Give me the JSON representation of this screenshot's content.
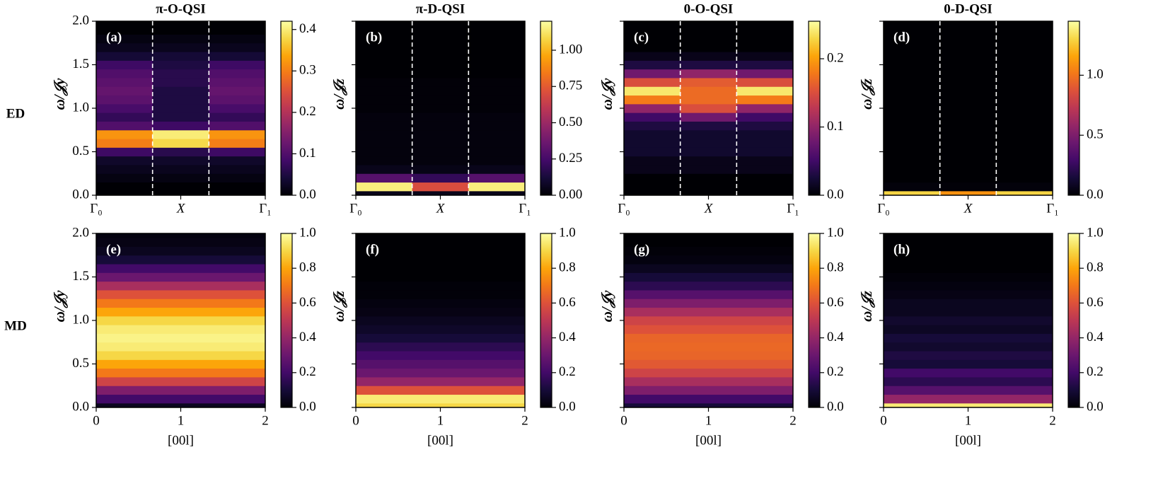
{
  "chart_data": [
    {
      "type": "heatmap",
      "title": "π-O-QSI",
      "row_label": "ED",
      "panel_label": "(a)",
      "ylabel": "ω/𝒥y",
      "colormap": "inferno",
      "categories": [
        "Γ₀",
        "X",
        "Γ₁"
      ],
      "dividers": true,
      "y": [
        0,
        0.1,
        0.2,
        0.3,
        0.4,
        0.5,
        0.6,
        0.7,
        0.8,
        0.9,
        1.0,
        1.1,
        1.2,
        1.3,
        1.4,
        1.5,
        1.6,
        1.7,
        1.8,
        1.9,
        2.0
      ],
      "columns": [
        [
          0,
          0,
          0.01,
          0.02,
          0.03,
          0.08,
          0.3,
          0.32,
          0.1,
          0.07,
          0.09,
          0.11,
          0.12,
          0.11,
          0.1,
          0.08,
          0.04,
          0.02,
          0.01,
          0,
          0
        ],
        [
          0,
          0,
          0.01,
          0.02,
          0.03,
          0.06,
          0.38,
          0.4,
          0.08,
          0.05,
          0.05,
          0.05,
          0.05,
          0.06,
          0.06,
          0.05,
          0.04,
          0.02,
          0.01,
          0,
          0
        ],
        [
          0,
          0,
          0.01,
          0.02,
          0.03,
          0.08,
          0.3,
          0.32,
          0.1,
          0.07,
          0.09,
          0.11,
          0.12,
          0.11,
          0.1,
          0.08,
          0.04,
          0.02,
          0.01,
          0,
          0
        ]
      ],
      "ylim": [
        0,
        2
      ],
      "yticks": [
        {
          "value": 0,
          "label": "0.0"
        },
        {
          "value": 0.5,
          "label": "0.5"
        },
        {
          "value": 1,
          "label": "1.0"
        },
        {
          "value": 1.5,
          "label": "1.5"
        },
        {
          "value": 2,
          "label": "2.0"
        }
      ],
      "ytick_labels": true,
      "clim": [
        0,
        0.42
      ],
      "cticks": [
        {
          "value": 0,
          "label": "0.0"
        },
        {
          "value": 0.1,
          "label": "0.1"
        },
        {
          "value": 0.2,
          "label": "0.2"
        },
        {
          "value": 0.3,
          "label": "0.3"
        },
        {
          "value": 0.4,
          "label": "0.4"
        }
      ]
    },
    {
      "type": "heatmap",
      "title": "π-D-QSI",
      "panel_label": "(b)",
      "ylabel": "ω/𝒥z",
      "colormap": "inferno",
      "categories": [
        "Γ₀",
        "X",
        "Γ₁"
      ],
      "dividers": true,
      "y": [
        0,
        0.1,
        0.2,
        0.3,
        0.4,
        0.5,
        0.6,
        0.7,
        0.8,
        0.9,
        1.0,
        1.1,
        1.2,
        1.3,
        1.4,
        1.5,
        1.6,
        1.7,
        1.8,
        1.9,
        2.0
      ],
      "columns": [
        [
          0.05,
          1.15,
          0.3,
          0.05,
          0.02,
          0.02,
          0.02,
          0.02,
          0.02,
          0.02,
          0.01,
          0.01,
          0.01,
          0.01,
          0,
          0,
          0,
          0,
          0,
          0,
          0
        ],
        [
          0.05,
          0.7,
          0.2,
          0.04,
          0.02,
          0.02,
          0.02,
          0.02,
          0.02,
          0.02,
          0.01,
          0.01,
          0.01,
          0.01,
          0,
          0,
          0,
          0,
          0,
          0,
          0
        ],
        [
          0.05,
          1.15,
          0.3,
          0.05,
          0.02,
          0.02,
          0.02,
          0.02,
          0.02,
          0.02,
          0.01,
          0.01,
          0.01,
          0.01,
          0,
          0,
          0,
          0,
          0,
          0,
          0
        ]
      ],
      "ylim": [
        0,
        2
      ],
      "yticks": [
        0,
        0.5,
        1,
        1.5,
        2
      ],
      "ytick_labels": false,
      "clim": [
        0,
        1.2
      ],
      "cticks": [
        {
          "value": 0,
          "label": "0.00"
        },
        {
          "value": 0.25,
          "label": "0.25"
        },
        {
          "value": 0.5,
          "label": "0.50"
        },
        {
          "value": 0.75,
          "label": "0.75"
        },
        {
          "value": 1,
          "label": "1.00"
        }
      ]
    },
    {
      "type": "heatmap",
      "title": "0-O-QSI",
      "panel_label": "(c)",
      "ylabel": "ω/𝒥y",
      "colormap": "inferno",
      "categories": [
        "Γ₀",
        "X",
        "Γ₁"
      ],
      "dividers": true,
      "y": [
        0,
        0.1,
        0.2,
        0.3,
        0.4,
        0.5,
        0.6,
        0.7,
        0.8,
        0.9,
        1.0,
        1.1,
        1.2,
        1.3,
        1.4,
        1.5,
        1.6,
        1.7,
        1.8,
        1.9,
        2.0
      ],
      "columns": [
        [
          0,
          0,
          0,
          0.01,
          0.01,
          0.02,
          0.02,
          0.02,
          0.03,
          0.05,
          0.1,
          0.18,
          0.24,
          0.15,
          0.08,
          0.03,
          0.01,
          0,
          0,
          0,
          0
        ],
        [
          0,
          0,
          0,
          0.01,
          0.01,
          0.02,
          0.02,
          0.02,
          0.03,
          0.08,
          0.15,
          0.17,
          0.17,
          0.16,
          0.1,
          0.03,
          0.01,
          0,
          0,
          0,
          0
        ],
        [
          0,
          0,
          0,
          0.01,
          0.01,
          0.02,
          0.02,
          0.02,
          0.03,
          0.05,
          0.1,
          0.18,
          0.24,
          0.15,
          0.08,
          0.03,
          0.01,
          0,
          0,
          0,
          0
        ]
      ],
      "ylim": [
        0,
        2
      ],
      "yticks": [
        0,
        0.5,
        1,
        1.5,
        2
      ],
      "ytick_labels": false,
      "clim": [
        0,
        0.255
      ],
      "cticks": [
        {
          "value": 0,
          "label": "0.0"
        },
        {
          "value": 0.1,
          "label": "0.1"
        },
        {
          "value": 0.2,
          "label": "0.2"
        }
      ]
    },
    {
      "type": "heatmap",
      "title": "0-D-QSI",
      "panel_label": "(d)",
      "ylabel": "ω/𝒥z",
      "colormap": "inferno",
      "categories": [
        "Γ₀",
        "X",
        "Γ₁"
      ],
      "dividers": true,
      "y": [
        0,
        0.1,
        0.2,
        0.3,
        0.4,
        0.5,
        0.6,
        0.7,
        0.8,
        0.9,
        1.0,
        1.1,
        1.2,
        1.3,
        1.4,
        1.5,
        1.6,
        1.7,
        1.8,
        1.9,
        2.0
      ],
      "columns": [
        [
          1.3,
          0.02,
          0,
          0,
          0,
          0,
          0,
          0,
          0,
          0,
          0,
          0,
          0,
          0,
          0,
          0,
          0,
          0,
          0,
          0,
          0
        ],
        [
          1.1,
          0.01,
          0,
          0,
          0,
          0,
          0,
          0,
          0,
          0,
          0,
          0,
          0,
          0,
          0,
          0,
          0,
          0,
          0,
          0,
          0
        ],
        [
          1.3,
          0.02,
          0,
          0,
          0,
          0,
          0,
          0,
          0,
          0,
          0,
          0,
          0,
          0,
          0,
          0,
          0,
          0,
          0,
          0,
          0
        ]
      ],
      "ylim": [
        0,
        2
      ],
      "yticks": [
        0,
        0.5,
        1,
        1.5,
        2
      ],
      "ytick_labels": false,
      "clim": [
        0,
        1.45
      ],
      "cticks": [
        {
          "value": 0,
          "label": "0.0"
        },
        {
          "value": 0.5,
          "label": "0.5"
        },
        {
          "value": 1,
          "label": "1.0"
        }
      ]
    },
    {
      "type": "heatmap",
      "row_label": "MD",
      "panel_label": "(e)",
      "ylabel": "ω/𝒥y",
      "xlabel": "[00l]",
      "colormap": "inferno",
      "xlim": [
        0,
        2
      ],
      "xticks": [
        0,
        1,
        2
      ],
      "y": [
        0,
        0.1,
        0.2,
        0.3,
        0.4,
        0.5,
        0.6,
        0.7,
        0.8,
        0.9,
        1.0,
        1.1,
        1.2,
        1.3,
        1.4,
        1.5,
        1.6,
        1.7,
        1.8,
        1.9,
        2.0
      ],
      "columns": [
        [
          0.05,
          0.2,
          0.35,
          0.55,
          0.7,
          0.8,
          0.9,
          0.95,
          0.97,
          0.95,
          0.9,
          0.8,
          0.7,
          0.6,
          0.45,
          0.3,
          0.2,
          0.1,
          0.05,
          0.03,
          0.02
        ]
      ],
      "ylim": [
        0,
        2
      ],
      "yticks": [
        {
          "value": 0,
          "label": "0.0"
        },
        {
          "value": 0.5,
          "label": "0.5"
        },
        {
          "value": 1,
          "label": "1.0"
        },
        {
          "value": 1.5,
          "label": "1.5"
        },
        {
          "value": 2,
          "label": "2.0"
        }
      ],
      "ytick_labels": true,
      "clim": [
        0,
        1
      ],
      "cticks": [
        {
          "value": 0,
          "label": "0.0"
        },
        {
          "value": 0.2,
          "label": "0.2"
        },
        {
          "value": 0.4,
          "label": "0.4"
        },
        {
          "value": 0.6,
          "label": "0.6"
        },
        {
          "value": 0.8,
          "label": "0.8"
        },
        {
          "value": 1,
          "label": "1.0"
        }
      ]
    },
    {
      "type": "heatmap",
      "panel_label": "(f)",
      "ylabel": "ω/𝒥z",
      "xlabel": "[00l]",
      "colormap": "inferno",
      "xlim": [
        0,
        2
      ],
      "xticks": [
        0,
        1,
        2
      ],
      "y": [
        0,
        0.1,
        0.2,
        0.3,
        0.4,
        0.5,
        0.6,
        0.7,
        0.8,
        0.9,
        1.0,
        1.1,
        1.2,
        1.3,
        1.4,
        1.5,
        1.6,
        1.7,
        1.8,
        1.9,
        2.0
      ],
      "columns": [
        [
          0.9,
          0.95,
          0.6,
          0.4,
          0.3,
          0.25,
          0.2,
          0.15,
          0.1,
          0.07,
          0.05,
          0.03,
          0.02,
          0.01,
          0.01,
          0,
          0,
          0,
          0,
          0,
          0
        ]
      ],
      "ylim": [
        0,
        2
      ],
      "yticks": [
        0,
        0.5,
        1,
        1.5,
        2
      ],
      "ytick_labels": false,
      "clim": [
        0,
        1
      ],
      "cticks": [
        {
          "value": 0,
          "label": "0.0"
        },
        {
          "value": 0.2,
          "label": "0.2"
        },
        {
          "value": 0.4,
          "label": "0.4"
        },
        {
          "value": 0.6,
          "label": "0.6"
        },
        {
          "value": 0.8,
          "label": "0.8"
        },
        {
          "value": 1,
          "label": "1.0"
        }
      ]
    },
    {
      "type": "heatmap",
      "panel_label": "(g)",
      "ylabel": "ω/𝒥y",
      "xlabel": "[00l]",
      "colormap": "inferno",
      "xlim": [
        0,
        2
      ],
      "xticks": [
        0,
        1,
        2
      ],
      "y": [
        0,
        0.1,
        0.2,
        0.3,
        0.4,
        0.5,
        0.6,
        0.7,
        0.8,
        0.9,
        1.0,
        1.1,
        1.2,
        1.3,
        1.4,
        1.5,
        1.6,
        1.7,
        1.8,
        1.9,
        2.0
      ],
      "columns": [
        [
          0.1,
          0.2,
          0.35,
          0.45,
          0.55,
          0.62,
          0.65,
          0.66,
          0.65,
          0.6,
          0.55,
          0.45,
          0.35,
          0.25,
          0.15,
          0.1,
          0.05,
          0.02,
          0.01,
          0,
          0
        ]
      ],
      "ylim": [
        0,
        2
      ],
      "yticks": [
        0,
        0.5,
        1,
        1.5,
        2
      ],
      "ytick_labels": false,
      "clim": [
        0,
        1
      ],
      "cticks": [
        {
          "value": 0,
          "label": "0.0"
        },
        {
          "value": 0.2,
          "label": "0.2"
        },
        {
          "value": 0.4,
          "label": "0.4"
        },
        {
          "value": 0.6,
          "label": "0.6"
        },
        {
          "value": 0.8,
          "label": "0.8"
        },
        {
          "value": 1,
          "label": "1.0"
        }
      ]
    },
    {
      "type": "heatmap",
      "panel_label": "(h)",
      "ylabel": "ω/𝒥z",
      "xlabel": "[00l]",
      "colormap": "inferno",
      "xlim": [
        0,
        2
      ],
      "xticks": [
        0,
        1,
        2
      ],
      "y": [
        0,
        0.1,
        0.2,
        0.3,
        0.4,
        0.5,
        0.6,
        0.7,
        0.8,
        0.9,
        1.0,
        1.1,
        1.2,
        1.3,
        1.4,
        1.5,
        1.6,
        1.7,
        1.8,
        1.9,
        2.0
      ],
      "columns": [
        [
          0.95,
          0.4,
          0.25,
          0.15,
          0.2,
          0.1,
          0.12,
          0.08,
          0.1,
          0.06,
          0.08,
          0.05,
          0.05,
          0.03,
          0.02,
          0.01,
          0,
          0,
          0,
          0,
          0
        ]
      ],
      "ylim": [
        0,
        2
      ],
      "yticks": [
        0,
        0.5,
        1,
        1.5,
        2
      ],
      "ytick_labels": false,
      "clim": [
        0,
        1
      ],
      "cticks": [
        {
          "value": 0,
          "label": "0.0"
        },
        {
          "value": 0.2,
          "label": "0.2"
        },
        {
          "value": 0.4,
          "label": "0.4"
        },
        {
          "value": 0.6,
          "label": "0.6"
        },
        {
          "value": 0.8,
          "label": "0.8"
        },
        {
          "value": 1,
          "label": "1.0"
        }
      ]
    }
  ]
}
